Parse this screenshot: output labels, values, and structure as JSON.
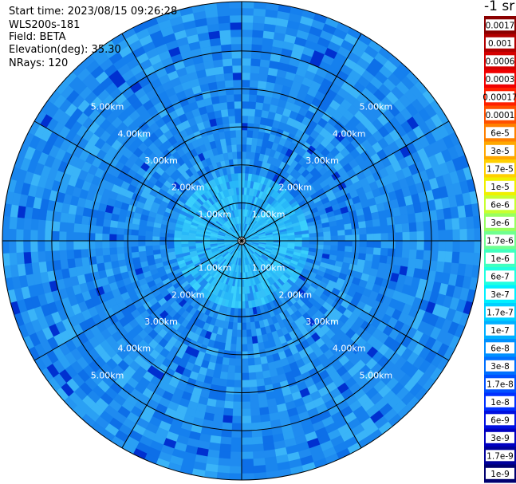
{
  "header": {
    "start_time": "Start time: 2023/08/15 09:26:28",
    "instrument": "WLS200s-181",
    "field": "Field: BETA",
    "elevation": "Elevation(deg): 35.30",
    "nrays": "NRays: 120"
  },
  "colorbar": {
    "unit_label": "-1 sr",
    "labels": [
      "0.0017",
      "0.001",
      "0.0006",
      "0.0003",
      "0.00017",
      "0.0001",
      "6e-5",
      "3e-5",
      "1.7e-5",
      "1e-5",
      "6e-6",
      "3e-6",
      "1.7e-6",
      "1e-6",
      "6e-7",
      "3e-7",
      "1.7e-7",
      "1e-7",
      "6e-8",
      "3e-8",
      "1.7e-8",
      "1e-8",
      "6e-9",
      "3e-9",
      "1.7e-9",
      "1e-9"
    ],
    "colors": [
      "#8b0000",
      "#b20000",
      "#d40000",
      "#f00000",
      "#ff2000",
      "#ff5000",
      "#ff8000",
      "#ffa800",
      "#ffd000",
      "#f0f000",
      "#c8ff30",
      "#98ff60",
      "#70ff90",
      "#40ffc0",
      "#20ffe0",
      "#00f0ff",
      "#00d0ff",
      "#00b0ff",
      "#0090ff",
      "#0070ff",
      "#0050ff",
      "#0030ff",
      "#0010e0",
      "#0000c0",
      "#00009a",
      "#000070"
    ]
  },
  "chart_data": {
    "type": "heatmap",
    "projection": "polar PPI (plan position indicator)",
    "elevation_deg": 35.3,
    "n_rays": 120,
    "field": "BETA",
    "range_rings_km": [
      1,
      2,
      3,
      4,
      5
    ],
    "ring_labels": [
      "1.00km",
      "2.00km",
      "3.00km",
      "4.00km",
      "5.00km"
    ],
    "max_range_km": 6.3,
    "azimuth_spokes_deg": [
      0,
      30,
      60,
      90,
      120,
      150,
      180,
      210,
      240,
      270,
      300,
      330
    ],
    "colorbar_scale": "log",
    "colorbar_range": [
      1e-09,
      0.0017
    ],
    "field_description_levels": {
      "inner_0_to_1.5km": "1e-7 to 1.7e-7",
      "outer_1.5_to_6km": "3e-8 to 1e-7",
      "speckle": "1e-8 to 6e-8"
    }
  }
}
